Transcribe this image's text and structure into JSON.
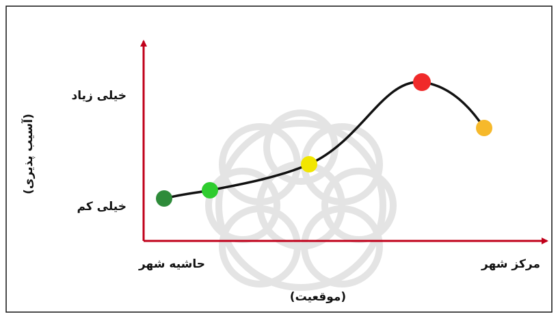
{
  "y_axis": {
    "label": "(آسیب پذیری)",
    "high": "خیلی زیاد",
    "low": "خیلی کم"
  },
  "x_axis": {
    "label": "(موقعیت)",
    "start": "حاشیه شهر",
    "end": "مرکز شهر"
  }
}
